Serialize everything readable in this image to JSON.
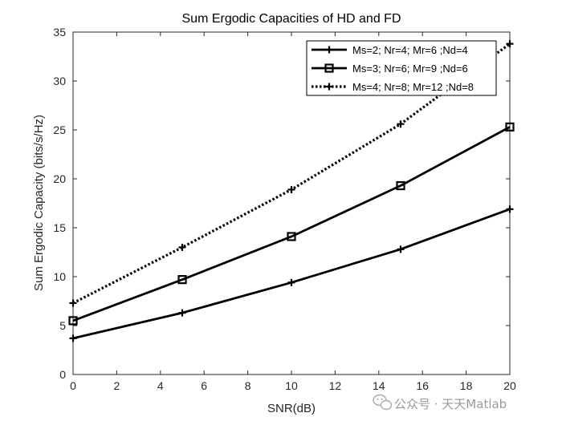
{
  "chart_data": {
    "type": "line",
    "title": "Sum Ergodic Capacities of HD and FD",
    "xlabel": "SNR(dB)",
    "ylabel": "Sum Ergodic Capacity (bits/s/Hz)",
    "xlim": [
      0,
      20
    ],
    "ylim": [
      0,
      35
    ],
    "xticks": [
      0,
      2,
      4,
      6,
      8,
      10,
      12,
      14,
      16,
      18,
      20
    ],
    "yticks": [
      0,
      5,
      10,
      15,
      20,
      25,
      30,
      35
    ],
    "grid": false,
    "legend_position": "top-right",
    "x": [
      0,
      5,
      10,
      15,
      20
    ],
    "series": [
      {
        "name": "Ms=2; Nr=4; Mr=6 ;Nd=4",
        "values": [
          3.7,
          6.3,
          9.4,
          12.8,
          16.9
        ],
        "line_style": "solid",
        "marker": "plus",
        "color": "#000000"
      },
      {
        "name": "Ms=3; Nr=6; Mr=9 ;Nd=6",
        "values": [
          5.5,
          9.7,
          14.1,
          19.3,
          25.3
        ],
        "line_style": "solid",
        "marker": "square",
        "color": "#000000"
      },
      {
        "name": "Ms=4; Nr=8; Mr=12 ;Nd=8",
        "values": [
          7.3,
          13.0,
          18.9,
          25.6,
          33.8
        ],
        "line_style": "dotted",
        "marker": "plus",
        "color": "#000000"
      }
    ]
  },
  "watermark": {
    "text": "公众号 · 天天Matlab",
    "icon": "wechat-icon"
  }
}
